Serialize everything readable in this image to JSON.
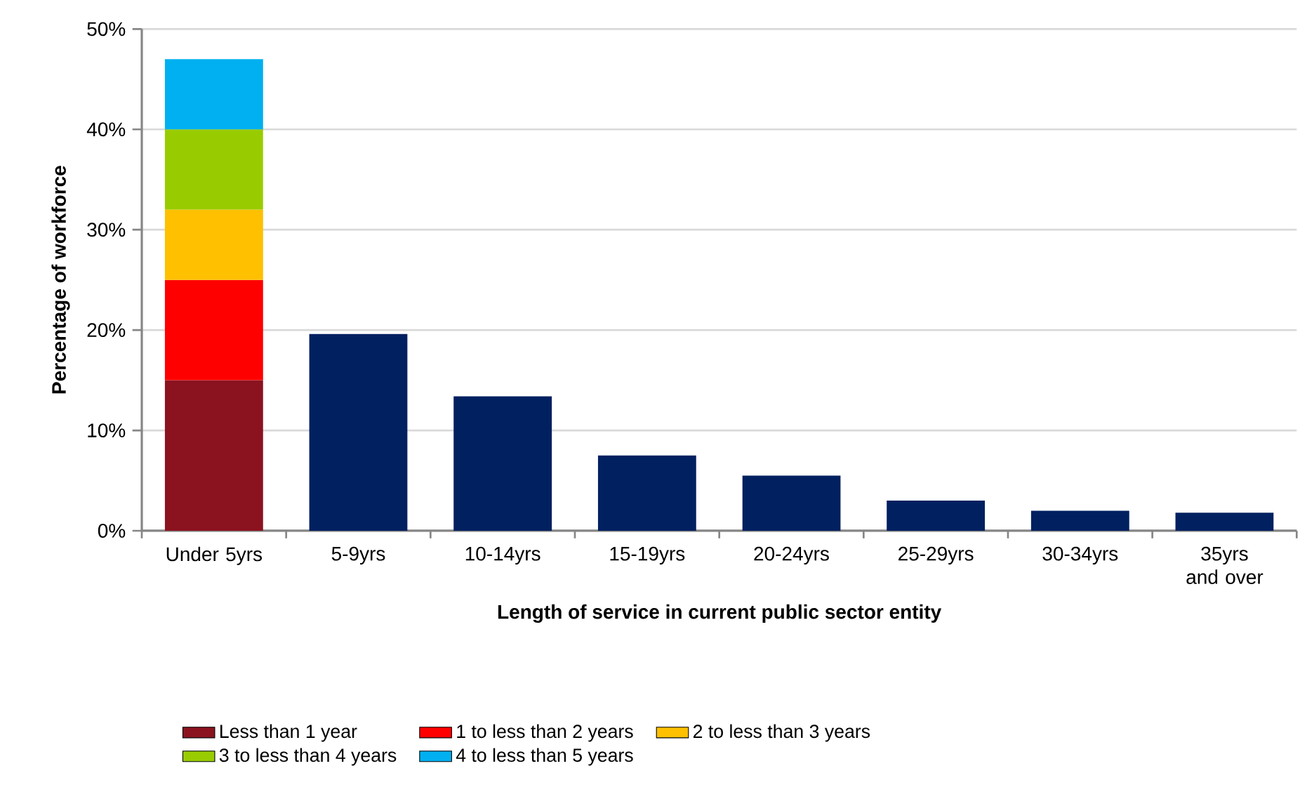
{
  "chart_data": {
    "type": "bar",
    "stacked": true,
    "xlabel": "Length of service in current public sector entity",
    "ylabel": "Percentage of workforce",
    "categories": [
      "Under 5yrs",
      "5-9yrs",
      "10-14yrs",
      "15-19yrs",
      "20-24yrs",
      "25-29yrs",
      "30-34yrs",
      "35yrs and over"
    ],
    "series": [
      {
        "name": "Less than 1 year",
        "color": "#8b121f",
        "values": [
          15,
          null,
          null,
          null,
          null,
          null,
          null,
          null
        ]
      },
      {
        "name": "1 to less than 2 years",
        "color": "#ff0000",
        "values": [
          10,
          null,
          null,
          null,
          null,
          null,
          null,
          null
        ]
      },
      {
        "name": "2 to less than 3 years",
        "color": "#ffc000",
        "values": [
          7,
          null,
          null,
          null,
          null,
          null,
          null,
          null
        ]
      },
      {
        "name": "3 to less than 4 years",
        "color": "#99cc00",
        "values": [
          8,
          null,
          null,
          null,
          null,
          null,
          null,
          null
        ]
      },
      {
        "name": "4 to less than 5 years",
        "color": "#00b0f0",
        "values": [
          7,
          null,
          null,
          null,
          null,
          null,
          null,
          null
        ]
      },
      {
        "color": "#002060",
        "values": [
          null,
          19.6,
          13.4,
          7.5,
          5.5,
          3.0,
          2.0,
          1.8
        ]
      }
    ],
    "ylim": [
      0,
      50
    ],
    "yticks": [
      {
        "value": 0,
        "label": "0%"
      },
      {
        "value": 10,
        "label": "10%"
      },
      {
        "value": 20,
        "label": "20%"
      },
      {
        "value": 30,
        "label": "30%"
      },
      {
        "value": 40,
        "label": "40%"
      },
      {
        "value": 50,
        "label": "50%"
      }
    ],
    "grid": "y",
    "legend": "bottom"
  }
}
